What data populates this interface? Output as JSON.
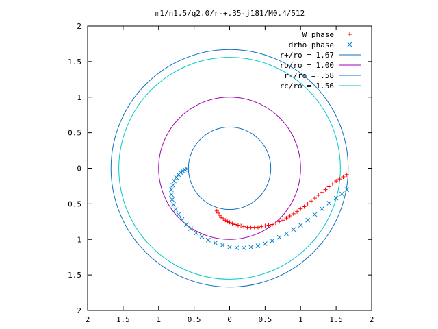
{
  "chart_data": {
    "type": "scatter",
    "title": "m1/n1.5/q2.0/r-+.35-j181/M0.4/512",
    "xlabel": "",
    "ylabel": "",
    "xlim": [
      -2,
      2
    ],
    "ylim": [
      -2,
      2
    ],
    "grid": false,
    "legend_position": "top-right",
    "x_ticks": [
      {
        "value": -2,
        "label": "2"
      },
      {
        "value": -1.5,
        "label": "1.5"
      },
      {
        "value": -1,
        "label": "1"
      },
      {
        "value": -0.5,
        "label": "0.5"
      },
      {
        "value": 0,
        "label": "0"
      },
      {
        "value": 0.5,
        "label": "0.5"
      },
      {
        "value": 1,
        "label": "1"
      },
      {
        "value": 1.5,
        "label": "1.5"
      },
      {
        "value": 2,
        "label": "2"
      }
    ],
    "y_ticks": [
      {
        "value": 2,
        "label": "2"
      },
      {
        "value": 1.5,
        "label": "1.5"
      },
      {
        "value": 1,
        "label": "1"
      },
      {
        "value": 0.5,
        "label": "0.5"
      },
      {
        "value": 0,
        "label": "0"
      },
      {
        "value": -0.5,
        "label": "0.5"
      },
      {
        "value": -1,
        "label": "1"
      },
      {
        "value": -1.5,
        "label": "1.5"
      },
      {
        "value": -2,
        "label": "2"
      }
    ],
    "series": [
      {
        "name": "W phase",
        "marker": "+",
        "color": "#ff0000",
        "points": [
          [
            -0.18,
            -0.6
          ],
          [
            -0.16,
            -0.63
          ],
          [
            -0.14,
            -0.66
          ],
          [
            -0.12,
            -0.69
          ],
          [
            -0.09,
            -0.71
          ],
          [
            -0.06,
            -0.73
          ],
          [
            -0.03,
            -0.75
          ],
          [
            0.0,
            -0.76
          ],
          [
            0.04,
            -0.78
          ],
          [
            0.08,
            -0.79
          ],
          [
            0.12,
            -0.8
          ],
          [
            0.16,
            -0.81
          ],
          [
            0.2,
            -0.82
          ],
          [
            0.25,
            -0.83
          ],
          [
            0.3,
            -0.83
          ],
          [
            0.35,
            -0.83
          ],
          [
            0.4,
            -0.83
          ],
          [
            0.45,
            -0.82
          ],
          [
            0.5,
            -0.81
          ],
          [
            0.55,
            -0.8
          ],
          [
            0.6,
            -0.79
          ],
          [
            0.65,
            -0.77
          ],
          [
            0.7,
            -0.75
          ],
          [
            0.75,
            -0.73
          ],
          [
            0.8,
            -0.7
          ],
          [
            0.85,
            -0.67
          ],
          [
            0.9,
            -0.64
          ],
          [
            0.95,
            -0.61
          ],
          [
            1.0,
            -0.57
          ],
          [
            1.05,
            -0.54
          ],
          [
            1.1,
            -0.5
          ],
          [
            1.15,
            -0.46
          ],
          [
            1.2,
            -0.42
          ],
          [
            1.25,
            -0.38
          ],
          [
            1.3,
            -0.34
          ],
          [
            1.35,
            -0.3
          ],
          [
            1.4,
            -0.26
          ],
          [
            1.45,
            -0.22
          ],
          [
            1.5,
            -0.18
          ],
          [
            1.55,
            -0.15
          ],
          [
            1.6,
            -0.12
          ],
          [
            1.65,
            -0.09
          ]
        ]
      },
      {
        "name": "drho phase",
        "marker": "x",
        "color": "#0080d0",
        "points": [
          [
            -0.6,
            -0.01
          ],
          [
            -0.63,
            -0.02
          ],
          [
            -0.66,
            -0.04
          ],
          [
            -0.69,
            -0.06
          ],
          [
            -0.72,
            -0.09
          ],
          [
            -0.75,
            -0.13
          ],
          [
            -0.78,
            -0.18
          ],
          [
            -0.8,
            -0.24
          ],
          [
            -0.82,
            -0.3
          ],
          [
            -0.82,
            -0.37
          ],
          [
            -0.81,
            -0.44
          ],
          [
            -0.79,
            -0.51
          ],
          [
            -0.76,
            -0.58
          ],
          [
            -0.72,
            -0.65
          ],
          [
            -0.67,
            -0.72
          ],
          [
            -0.61,
            -0.79
          ],
          [
            -0.55,
            -0.85
          ],
          [
            -0.47,
            -0.91
          ],
          [
            -0.39,
            -0.96
          ],
          [
            -0.3,
            -1.01
          ],
          [
            -0.2,
            -1.05
          ],
          [
            -0.1,
            -1.08
          ],
          [
            0.0,
            -1.11
          ],
          [
            0.1,
            -1.12
          ],
          [
            0.2,
            -1.12
          ],
          [
            0.3,
            -1.11
          ],
          [
            0.4,
            -1.09
          ],
          [
            0.5,
            -1.06
          ],
          [
            0.6,
            -1.02
          ],
          [
            0.7,
            -0.97
          ],
          [
            0.8,
            -0.92
          ],
          [
            0.9,
            -0.86
          ],
          [
            1.0,
            -0.8
          ],
          [
            1.1,
            -0.73
          ],
          [
            1.2,
            -0.65
          ],
          [
            1.3,
            -0.57
          ],
          [
            1.4,
            -0.49
          ],
          [
            1.5,
            -0.42
          ],
          [
            1.58,
            -0.36
          ],
          [
            1.65,
            -0.3
          ]
        ]
      },
      {
        "name": "r+/ro = 1.67",
        "type": "circle",
        "radius": 1.67,
        "color": "#1070c0"
      },
      {
        "name": "ro/ro = 1.00",
        "type": "circle",
        "radius": 1.0,
        "color": "#a000b0"
      },
      {
        "name": "r-/ro = .58",
        "type": "circle",
        "radius": 0.58,
        "color": "#1070c0"
      },
      {
        "name": "rc/ro = 1.56",
        "type": "circle",
        "radius": 1.56,
        "color": "#00c8d0"
      }
    ]
  }
}
